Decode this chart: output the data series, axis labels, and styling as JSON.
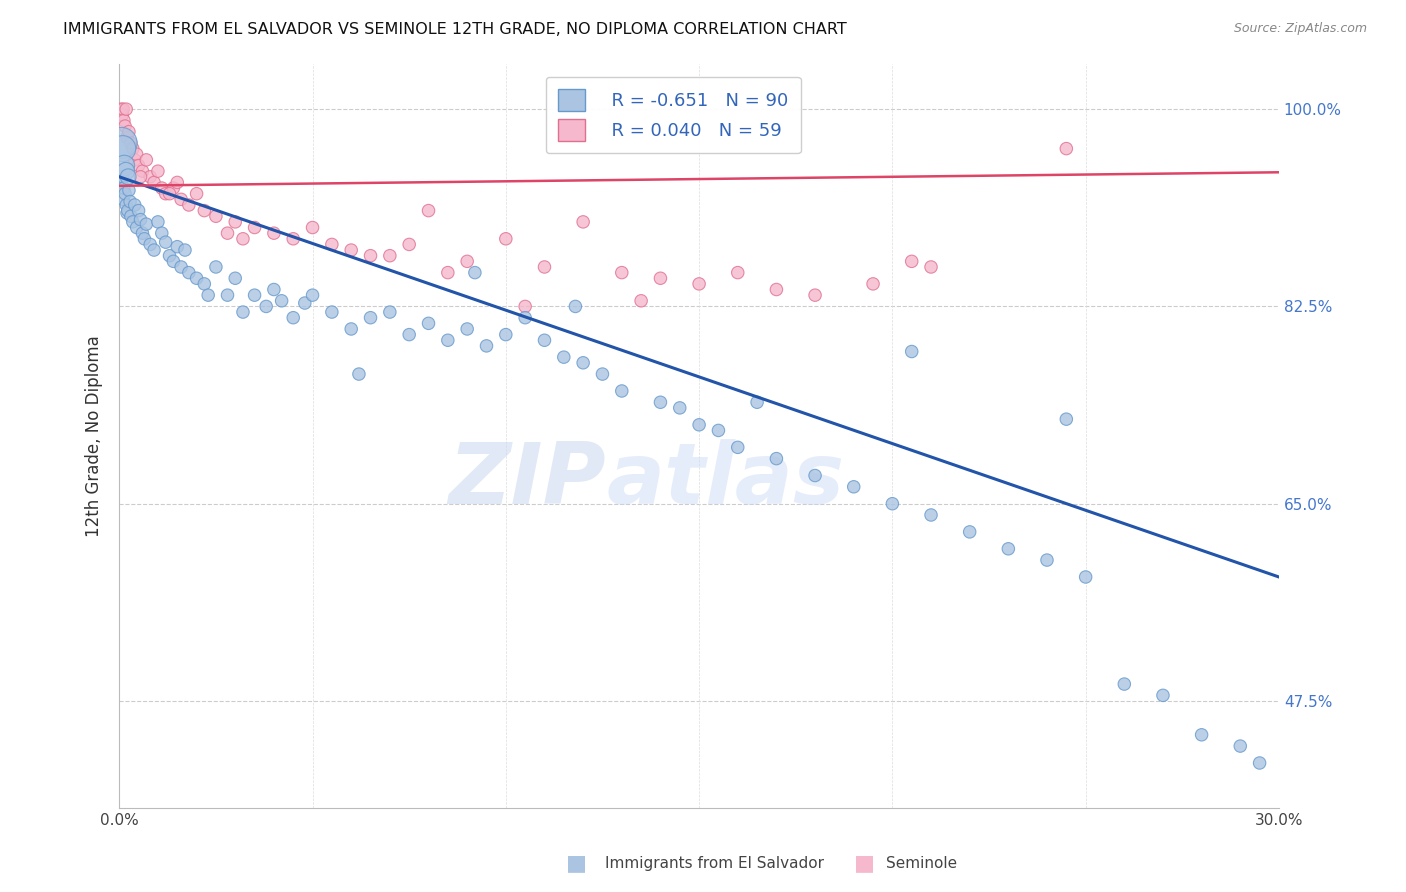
{
  "title": "IMMIGRANTS FROM EL SALVADOR VS SEMINOLE 12TH GRADE, NO DIPLOMA CORRELATION CHART",
  "source": "Source: ZipAtlas.com",
  "ylabel": "12th Grade, No Diploma",
  "y_ticks": [
    47.5,
    65.0,
    82.5,
    100.0
  ],
  "y_tick_labels": [
    "47.5%",
    "65.0%",
    "82.5%",
    "100.0%"
  ],
  "xlim": [
    0.0,
    30.0
  ],
  "ylim": [
    38.0,
    104.0
  ],
  "blue_r": -0.651,
  "blue_n": 90,
  "pink_r": 0.04,
  "pink_n": 59,
  "blue_color": "#aac4e2",
  "blue_edge": "#6699cc",
  "blue_line_color": "#2255aa",
  "pink_color": "#f5b8cc",
  "pink_edge": "#e07090",
  "pink_line_color": "#dd4466",
  "blue_trendline_x": [
    0.0,
    30.0
  ],
  "blue_trendline_y": [
    94.0,
    58.5
  ],
  "pink_trendline_x": [
    0.0,
    30.0
  ],
  "pink_trendline_y": [
    93.2,
    94.4
  ],
  "watermark_zip": "ZIP",
  "watermark_atlas": "atlas",
  "blue_scatter_x": [
    0.05,
    0.08,
    0.1,
    0.12,
    0.15,
    0.18,
    0.2,
    0.22,
    0.25,
    0.28,
    0.3,
    0.35,
    0.4,
    0.45,
    0.5,
    0.55,
    0.6,
    0.65,
    0.7,
    0.8,
    0.9,
    1.0,
    1.1,
    1.2,
    1.3,
    1.4,
    1.5,
    1.6,
    1.7,
    1.8,
    2.0,
    2.2,
    2.5,
    2.8,
    3.0,
    3.2,
    3.5,
    3.8,
    4.0,
    4.2,
    4.5,
    4.8,
    5.0,
    5.5,
    6.0,
    6.5,
    7.0,
    7.5,
    8.0,
    8.5,
    9.0,
    9.5,
    10.0,
    10.5,
    11.0,
    11.5,
    12.0,
    12.5,
    13.0,
    14.0,
    14.5,
    15.0,
    15.5,
    16.0,
    17.0,
    18.0,
    19.0,
    20.0,
    20.5,
    21.0,
    22.0,
    23.0,
    24.0,
    24.5,
    25.0,
    26.0,
    27.0,
    28.0,
    29.0,
    29.5,
    2.3,
    6.2,
    9.2,
    11.8,
    16.5,
    0.06,
    0.09,
    0.13,
    0.17,
    0.23
  ],
  "blue_scatter_y": [
    93.5,
    94.0,
    92.0,
    93.0,
    92.5,
    91.5,
    90.8,
    91.0,
    92.8,
    91.8,
    90.5,
    90.0,
    91.5,
    89.5,
    91.0,
    90.2,
    89.0,
    88.5,
    89.8,
    88.0,
    87.5,
    90.0,
    89.0,
    88.2,
    87.0,
    86.5,
    87.8,
    86.0,
    87.5,
    85.5,
    85.0,
    84.5,
    86.0,
    83.5,
    85.0,
    82.0,
    83.5,
    82.5,
    84.0,
    83.0,
    81.5,
    82.8,
    83.5,
    82.0,
    80.5,
    81.5,
    82.0,
    80.0,
    81.0,
    79.5,
    80.5,
    79.0,
    80.0,
    81.5,
    79.5,
    78.0,
    77.5,
    76.5,
    75.0,
    74.0,
    73.5,
    72.0,
    71.5,
    70.0,
    69.0,
    67.5,
    66.5,
    65.0,
    78.5,
    64.0,
    62.5,
    61.0,
    60.0,
    72.5,
    58.5,
    49.0,
    48.0,
    44.5,
    43.5,
    42.0,
    83.5,
    76.5,
    85.5,
    82.5,
    74.0,
    97.0,
    96.5,
    95.0,
    94.5,
    94.0
  ],
  "blue_scatter_size": [
    80,
    80,
    80,
    80,
    80,
    80,
    80,
    80,
    80,
    80,
    80,
    80,
    80,
    80,
    80,
    80,
    80,
    80,
    80,
    80,
    80,
    80,
    80,
    80,
    80,
    80,
    80,
    80,
    80,
    80,
    80,
    80,
    80,
    80,
    80,
    80,
    80,
    80,
    80,
    80,
    80,
    80,
    80,
    80,
    80,
    80,
    80,
    80,
    80,
    80,
    80,
    80,
    80,
    80,
    80,
    80,
    80,
    80,
    80,
    80,
    80,
    80,
    80,
    80,
    80,
    80,
    80,
    80,
    80,
    80,
    80,
    80,
    80,
    80,
    80,
    80,
    80,
    80,
    80,
    80,
    80,
    80,
    80,
    80,
    80,
    500,
    350,
    220,
    160,
    130
  ],
  "pink_scatter_x": [
    0.05,
    0.08,
    0.1,
    0.12,
    0.15,
    0.18,
    0.2,
    0.25,
    0.3,
    0.35,
    0.4,
    0.45,
    0.5,
    0.6,
    0.7,
    0.8,
    0.9,
    1.0,
    1.1,
    1.2,
    1.4,
    1.6,
    1.8,
    2.0,
    2.2,
    2.5,
    3.0,
    3.5,
    4.0,
    4.5,
    5.0,
    5.5,
    6.0,
    7.0,
    7.5,
    8.0,
    9.0,
    10.0,
    11.0,
    12.0,
    13.0,
    14.0,
    15.0,
    16.0,
    17.0,
    18.0,
    19.5,
    21.0,
    24.5,
    0.55,
    1.3,
    1.5,
    2.8,
    3.2,
    6.5,
    8.5,
    10.5,
    13.5,
    20.5
  ],
  "pink_scatter_y": [
    100.0,
    99.5,
    100.0,
    99.0,
    98.5,
    100.0,
    97.5,
    98.0,
    97.0,
    96.5,
    95.5,
    96.0,
    95.0,
    94.5,
    95.5,
    94.0,
    93.5,
    94.5,
    93.0,
    92.5,
    93.0,
    92.0,
    91.5,
    92.5,
    91.0,
    90.5,
    90.0,
    89.5,
    89.0,
    88.5,
    89.5,
    88.0,
    87.5,
    87.0,
    88.0,
    91.0,
    86.5,
    88.5,
    86.0,
    90.0,
    85.5,
    85.0,
    84.5,
    85.5,
    84.0,
    83.5,
    84.5,
    86.0,
    96.5,
    94.0,
    92.5,
    93.5,
    89.0,
    88.5,
    87.0,
    85.5,
    82.5,
    83.0,
    86.5
  ],
  "pink_scatter_size": [
    80,
    80,
    80,
    80,
    80,
    80,
    80,
    80,
    80,
    80,
    80,
    80,
    80,
    80,
    80,
    80,
    80,
    80,
    80,
    80,
    80,
    80,
    80,
    80,
    80,
    80,
    80,
    80,
    80,
    80,
    80,
    80,
    80,
    80,
    80,
    80,
    80,
    80,
    80,
    80,
    80,
    80,
    80,
    80,
    80,
    80,
    80,
    80,
    80,
    80,
    80,
    80,
    80,
    80,
    80,
    80,
    80,
    80,
    80
  ]
}
